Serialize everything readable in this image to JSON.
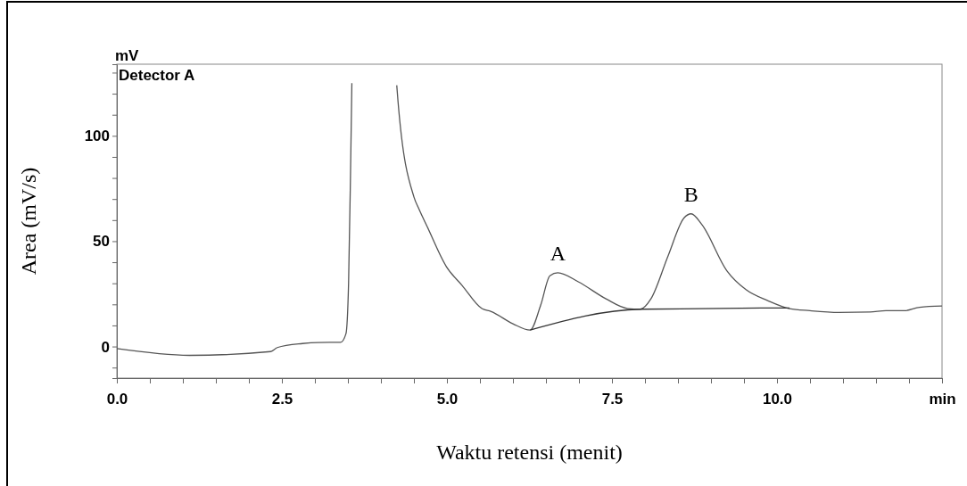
{
  "chart_data": {
    "type": "line",
    "xlabel": "Waktu retensi (menit)",
    "ylabel": "Area (mV/s)",
    "xlim": [
      0,
      12.5
    ],
    "ylim": [
      -15,
      134
    ],
    "xticks": [
      {
        "value": 0,
        "label": "0.0"
      },
      {
        "value": 0.5,
        "label": null
      },
      {
        "value": 1,
        "label": null
      },
      {
        "value": 1.5,
        "label": null
      },
      {
        "value": 2,
        "label": null
      },
      {
        "value": 2.5,
        "label": "2.5"
      },
      {
        "value": 3,
        "label": null
      },
      {
        "value": 3.5,
        "label": null
      },
      {
        "value": 4,
        "label": null
      },
      {
        "value": 4.5,
        "label": null
      },
      {
        "value": 5,
        "label": "5.0"
      },
      {
        "value": 5.5,
        "label": null
      },
      {
        "value": 6,
        "label": null
      },
      {
        "value": 6.5,
        "label": null
      },
      {
        "value": 7,
        "label": null
      },
      {
        "value": 7.5,
        "label": "7.5"
      },
      {
        "value": 8,
        "label": null
      },
      {
        "value": 8.5,
        "label": null
      },
      {
        "value": 9,
        "label": null
      },
      {
        "value": 9.5,
        "label": null
      },
      {
        "value": 10,
        "label": "10.0"
      },
      {
        "value": 10.5,
        "label": null
      },
      {
        "value": 11,
        "label": null
      },
      {
        "value": 11.5,
        "label": null
      },
      {
        "value": 12,
        "label": null
      },
      {
        "value": 12.5,
        "label": "min"
      }
    ],
    "yticks": [
      {
        "value": -10,
        "label": null
      },
      0,
      {
        "value": 10,
        "label": null
      },
      {
        "value": 20,
        "label": null
      },
      {
        "value": 30,
        "label": null
      },
      {
        "value": 40,
        "label": null
      },
      50,
      {
        "value": 60,
        "label": null
      },
      {
        "value": 70,
        "label": null
      },
      {
        "value": 80,
        "label": null
      },
      {
        "value": 90,
        "label": null
      },
      100,
      {
        "value": 110,
        "label": null
      },
      {
        "value": 120,
        "label": null
      },
      {
        "value": 130,
        "label": null
      }
    ],
    "grid": false,
    "annotations": [
      "mV",
      "Detector A",
      {
        "text": "A",
        "x": 6.68,
        "y": 35
      },
      {
        "text": "B",
        "x": 8.7,
        "y": 63
      }
    ],
    "series": [
      {
        "color": "#555555",
        "x": [
          0,
          1.1,
          2.33,
          2.43,
          2.81,
          3.05,
          3.39,
          3.47,
          3.51,
          3.54,
          3.56,
          3.9,
          4.24,
          4.26,
          4.5,
          4.58,
          4.7,
          4.99,
          5.23,
          5.53,
          5.67,
          6.0,
          6.26,
          6.42,
          6.56,
          6.68,
          6.99,
          7.41,
          7.74,
          7.93,
          8.09,
          8.35,
          8.59,
          8.7,
          8.86,
          9.24,
          9.53,
          9.86,
          10.19,
          10.5,
          10.94,
          11.41,
          11.65,
          11.93,
          12.16,
          12.5
        ],
        "values": [
          -1,
          -4.2,
          -2.4,
          -0.5,
          1.4,
          1.9,
          2,
          6,
          30,
          83,
          125,
          null,
          124,
          116,
          71,
          65,
          57,
          38,
          29,
          18,
          16.6,
          10.8,
          7.8,
          19.6,
          33.6,
          35,
          30.7,
          22.6,
          18,
          17.7,
          22.6,
          43,
          61,
          63,
          58,
          36,
          27,
          21.8,
          18,
          17,
          16.2,
          16.4,
          17,
          17,
          18.6,
          19.2
        ]
      },
      {
        "color": "#333333",
        "x": [
          6.26,
          7.93,
          10.19
        ],
        "values": [
          7.8,
          17.7,
          18.3
        ]
      }
    ]
  }
}
